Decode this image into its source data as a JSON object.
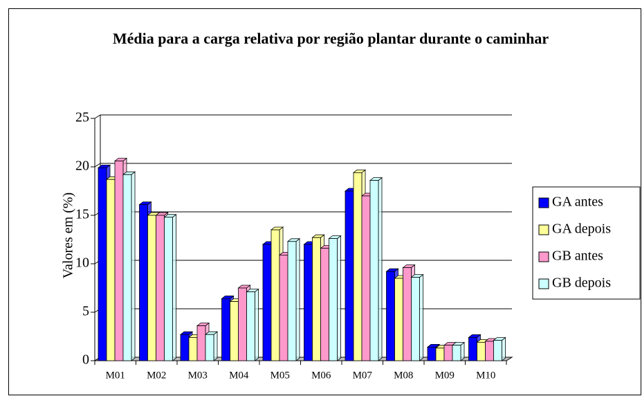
{
  "chart_data": {
    "type": "bar",
    "title": "Média para a carga relativa por região plantar durante o caminhar",
    "ylabel": "Valores em (%)",
    "categories": [
      "M01",
      "M02",
      "M03",
      "M04",
      "M05",
      "M06",
      "M07",
      "M08",
      "M09",
      "M10"
    ],
    "series": [
      {
        "name": "GA antes",
        "color": "#0000ff",
        "values": [
          19.9,
          16.1,
          2.7,
          6.4,
          12.0,
          12.0,
          17.5,
          9.2,
          1.4,
          2.4
        ]
      },
      {
        "name": "GA depois",
        "color": "#ffff99",
        "values": [
          18.7,
          15.0,
          2.4,
          6.1,
          13.5,
          12.7,
          19.4,
          8.5,
          1.3,
          1.9
        ]
      },
      {
        "name": "GB antes",
        "color": "#ff99cc",
        "values": [
          20.6,
          15.0,
          3.6,
          7.5,
          10.9,
          11.6,
          17.0,
          9.6,
          1.6,
          2.0
        ]
      },
      {
        "name": "GB depois",
        "color": "#ccffff",
        "values": [
          19.2,
          14.8,
          2.7,
          7.1,
          12.3,
          12.6,
          18.6,
          8.6,
          1.6,
          2.1
        ]
      }
    ],
    "ylim": [
      0,
      25
    ],
    "yticks": [
      0,
      5,
      10,
      15,
      20,
      25
    ],
    "grid": true,
    "legend": "right"
  }
}
